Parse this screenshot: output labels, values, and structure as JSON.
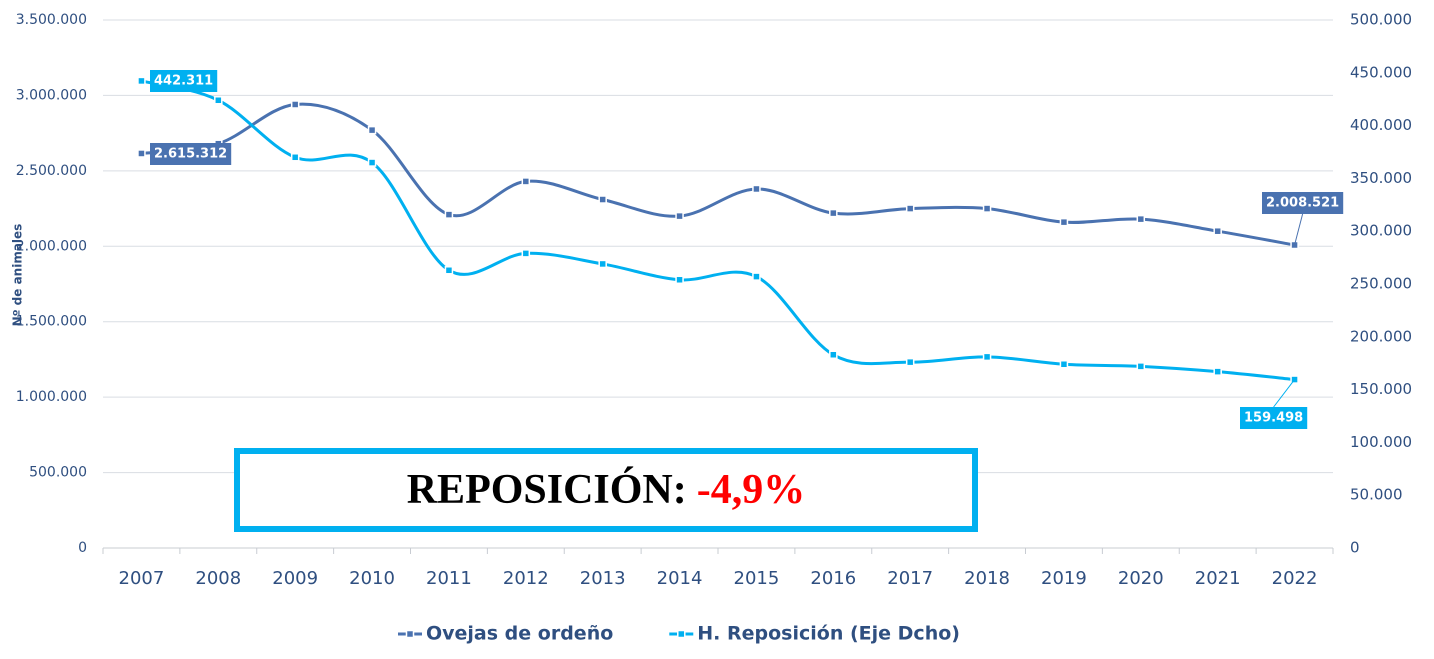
{
  "chart_data": {
    "type": "line",
    "y_label": "Nº de animales",
    "categories": [
      "2007",
      "2008",
      "2009",
      "2010",
      "2011",
      "2012",
      "2013",
      "2014",
      "2015",
      "2016",
      "2017",
      "2018",
      "2019",
      "2020",
      "2021",
      "2022"
    ],
    "series": [
      {
        "name": "Ovejas de ordeño",
        "color": "#4a72b0",
        "axis": "y",
        "values": [
          2615312,
          2680000,
          2940000,
          2770000,
          2210000,
          2430000,
          2310000,
          2200000,
          2380000,
          2220000,
          2250000,
          2250000,
          2160000,
          2180000,
          2100000,
          2008521
        ],
        "value_labels": [
          "2.615.312",
          null,
          null,
          null,
          null,
          null,
          null,
          null,
          null,
          null,
          null,
          null,
          null,
          null,
          null,
          "2.008.521"
        ]
      },
      {
        "name": "H. Reposición (Eje Dcho)",
        "color": "#00b0f0",
        "axis": "y2",
        "values": [
          442311,
          424000,
          370000,
          365000,
          263000,
          279000,
          269000,
          254000,
          257000,
          183000,
          176000,
          181000,
          174000,
          172000,
          167000,
          159498
        ],
        "value_labels": [
          "442.311",
          null,
          null,
          null,
          null,
          null,
          null,
          null,
          null,
          null,
          null,
          null,
          null,
          null,
          null,
          "159.498"
        ]
      }
    ],
    "ylim": [
      0,
      3500000
    ],
    "yticks": [
      0,
      {
        "value": 500000,
        "label": "500.000"
      },
      {
        "value": 1000000,
        "label": "1.000.000"
      },
      {
        "value": 1500000,
        "label": "1.500.000"
      },
      {
        "value": 2000000,
        "label": "2.000.000"
      },
      {
        "value": 2500000,
        "label": "2.500.000"
      },
      {
        "value": 3000000,
        "label": "3.000.000"
      },
      {
        "value": 3500000,
        "label": "3.500.000"
      }
    ],
    "y2lim": [
      0,
      500000
    ],
    "y2ticks": [
      0,
      {
        "value": 50000,
        "label": "50.000"
      },
      {
        "value": 100000,
        "label": "100.000"
      },
      {
        "value": 150000,
        "label": "150.000"
      },
      {
        "value": 200000,
        "label": "200.000"
      },
      {
        "value": 250000,
        "label": "250.000"
      },
      {
        "value": 300000,
        "label": "300.000"
      },
      {
        "value": 350000,
        "label": "350.000"
      },
      {
        "value": 400000,
        "label": "400.000"
      },
      {
        "value": 450000,
        "label": "450.000"
      },
      {
        "value": 500000,
        "label": "500.000"
      }
    ],
    "grid": true,
    "legend": "bottom",
    "annotation": {
      "text": "REPOSICIÓN:",
      "value": "-4,9%",
      "value_color": "#ff0000",
      "border_color": "#00b0f0"
    }
  }
}
